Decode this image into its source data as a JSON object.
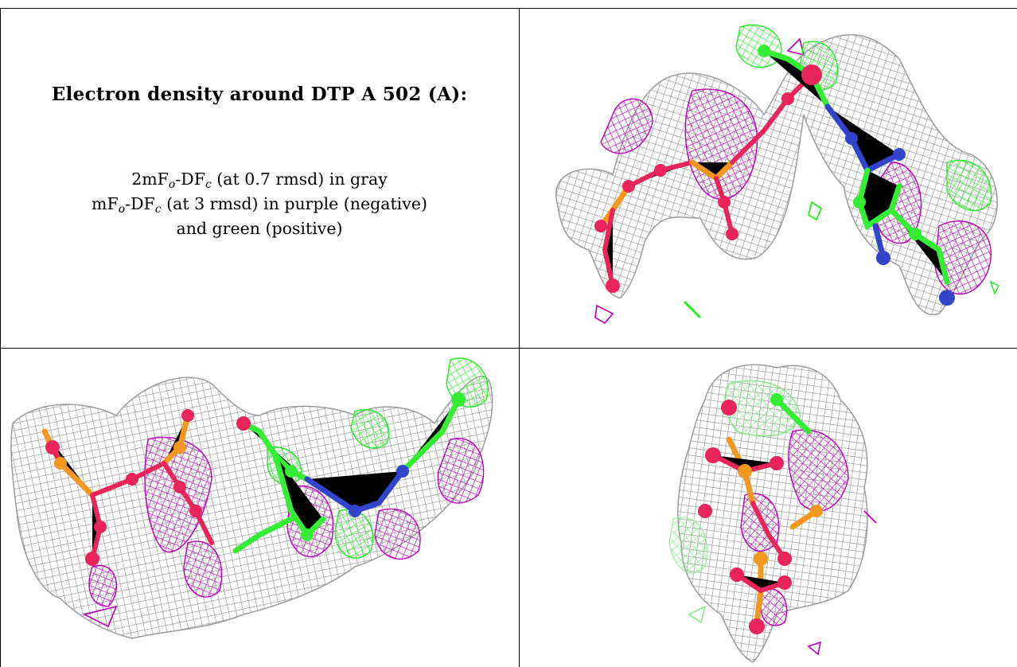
{
  "figure": {
    "title": "Electron density around DTP A 502 (A):",
    "legend": {
      "map1": {
        "prefix": "2mF",
        "sub1": "o",
        "mid": "-DF",
        "sub2": "c",
        "text": " (at 0.7 rmsd) in gray"
      },
      "map2": {
        "prefix": "mF",
        "sub1": "o",
        "mid": "-DF",
        "sub2": "c",
        "text": " (at 3 rmsd) in purple (negative)"
      },
      "map2_cont": "and green (positive)"
    },
    "colors": {
      "positive_density": "#22ee22",
      "negative_density": "#bb00bb",
      "map_2fofc": "#999999",
      "carbon": "#33ee33",
      "oxygen": "#e8245a",
      "phosphorus": "#f5961f",
      "nitrogen": "#3344cc"
    },
    "panels": [
      "view-1",
      "view-2",
      "view-3"
    ]
  }
}
